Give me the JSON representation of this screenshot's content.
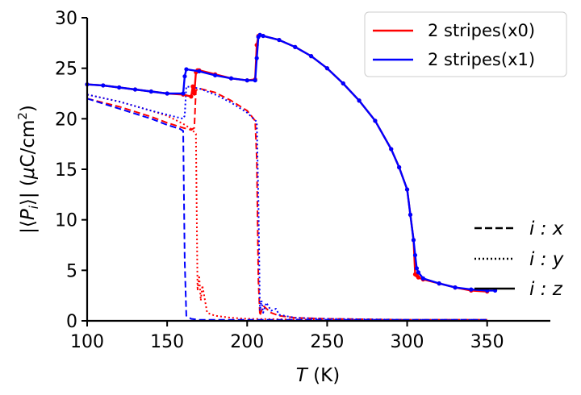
{
  "chart_data": {
    "type": "line",
    "xlabel": "T (K)",
    "xlabel_var": "T",
    "xlabel_unit": "(K)",
    "ylabel": "|⟨P_i⟩| (μC/cm²)",
    "xlim": [
      100,
      390
    ],
    "ylim": [
      0,
      30
    ],
    "xticks": [
      100,
      150,
      200,
      250,
      300,
      350
    ],
    "yticks": [
      0,
      5,
      10,
      15,
      20,
      25,
      30
    ],
    "xtick_labels": [
      "100",
      "150",
      "200",
      "250",
      "300",
      "350"
    ],
    "ytick_labels": [
      "0",
      "5",
      "10",
      "15",
      "20",
      "25",
      "30"
    ],
    "legend": {
      "placement": "top-right",
      "entries": [
        {
          "label": "2 stripes(x0)",
          "color": "#ff0000"
        },
        {
          "label": "2 stripes(x1)",
          "color": "#0000ff"
        }
      ]
    },
    "component_key": {
      "placement": "bottom-right",
      "entries": [
        {
          "label": "i : x",
          "style": "dashed"
        },
        {
          "label": "i : y",
          "style": "dotted"
        },
        {
          "label": "i : z",
          "style": "solid"
        }
      ]
    },
    "series": [
      {
        "name": "2 stripes(x0)",
        "component": "z",
        "color": "#ff0000",
        "style": "solid",
        "markers": true,
        "x": [
          100,
          110,
          120,
          130,
          140,
          150,
          160,
          165,
          166,
          167,
          168,
          169,
          170,
          180,
          190,
          200,
          205,
          206,
          207,
          208,
          210,
          220,
          230,
          240,
          250,
          260,
          270,
          280,
          290,
          295,
          300,
          302,
          304,
          305,
          306,
          307,
          310,
          320,
          330,
          340,
          350
        ],
        "y": [
          23.4,
          23.3,
          23.1,
          22.9,
          22.7,
          22.5,
          22.4,
          22.2,
          23.2,
          22.5,
          24.6,
          24.8,
          24.8,
          24.4,
          24.0,
          23.8,
          23.9,
          27.3,
          28.2,
          28.3,
          28.2,
          27.8,
          27.1,
          26.2,
          25.0,
          23.5,
          21.8,
          19.8,
          17.0,
          15.2,
          13.0,
          10.5,
          8.0,
          4.6,
          4.5,
          4.3,
          4.1,
          3.7,
          3.3,
          3.0,
          2.9
        ]
      },
      {
        "name": "2 stripes(x1)",
        "component": "z",
        "color": "#0000ff",
        "style": "solid",
        "markers": true,
        "x": [
          100,
          110,
          120,
          130,
          140,
          150,
          160,
          161,
          162,
          170,
          180,
          190,
          200,
          205,
          206,
          207,
          208,
          210,
          220,
          230,
          240,
          250,
          260,
          270,
          280,
          290,
          295,
          300,
          302,
          304,
          305,
          306,
          307,
          310,
          320,
          330,
          340,
          350,
          355
        ],
        "y": [
          23.4,
          23.3,
          23.1,
          22.9,
          22.7,
          22.5,
          22.5,
          24.2,
          24.9,
          24.7,
          24.3,
          24.0,
          23.8,
          23.8,
          26.0,
          28.1,
          28.3,
          28.2,
          27.8,
          27.1,
          26.2,
          25.0,
          23.5,
          21.8,
          19.8,
          17.0,
          15.2,
          13.0,
          10.5,
          8.0,
          6.5,
          5.2,
          4.8,
          4.2,
          3.7,
          3.3,
          3.1,
          3.0,
          3.0
        ]
      },
      {
        "name": "2 stripes(x0)",
        "component": "x",
        "color": "#ff0000",
        "style": "dashed",
        "markers": false,
        "x": [
          100,
          120,
          140,
          150,
          160,
          165,
          167,
          168,
          170,
          180,
          190,
          200,
          205,
          206,
          207,
          208,
          210,
          215,
          220,
          230,
          250,
          300,
          350
        ],
        "y": [
          22.0,
          21.2,
          20.2,
          19.6,
          19.1,
          18.9,
          19.1,
          22.8,
          23.0,
          22.6,
          21.8,
          20.8,
          19.8,
          16.0,
          4.0,
          0.5,
          1.5,
          0.8,
          0.5,
          0.3,
          0.2,
          0.1,
          0.1
        ]
      },
      {
        "name": "2 stripes(x0)",
        "component": "y",
        "color": "#ff0000",
        "style": "dotted",
        "markers": false,
        "x": [
          100,
          120,
          140,
          150,
          160,
          165,
          168,
          169,
          170,
          171,
          172,
          175,
          180,
          190,
          200,
          250,
          300,
          350
        ],
        "y": [
          22.4,
          21.7,
          20.8,
          20.3,
          19.5,
          19.0,
          18.5,
          3.0,
          4.5,
          2.0,
          3.5,
          0.8,
          0.5,
          0.3,
          0.2,
          0.1,
          0.1,
          0.1
        ]
      },
      {
        "name": "2 stripes(x1)",
        "component": "x",
        "color": "#0000ff",
        "style": "dashed",
        "markers": false,
        "x": [
          100,
          120,
          140,
          150,
          158,
          160,
          161,
          162,
          165,
          170,
          200,
          250,
          300,
          350
        ],
        "y": [
          22.0,
          21.0,
          20.0,
          19.4,
          19.0,
          18.8,
          6.0,
          0.5,
          0.2,
          0.1,
          0.1,
          0.1,
          0.1,
          0.1
        ]
      },
      {
        "name": "2 stripes(x1)",
        "component": "y",
        "color": "#0000ff",
        "style": "dotted",
        "markers": false,
        "x": [
          100,
          120,
          140,
          150,
          160,
          161,
          162,
          170,
          180,
          190,
          200,
          206,
          207,
          208,
          209,
          210,
          212,
          215,
          218,
          220,
          230,
          250,
          300,
          350
        ],
        "y": [
          22.4,
          21.7,
          20.8,
          20.4,
          20.0,
          20.3,
          23.2,
          23.0,
          22.4,
          21.6,
          20.6,
          19.7,
          12.0,
          1.0,
          2.0,
          0.8,
          1.8,
          1.0,
          1.2,
          0.6,
          0.3,
          0.2,
          0.1,
          0.1
        ]
      }
    ]
  }
}
